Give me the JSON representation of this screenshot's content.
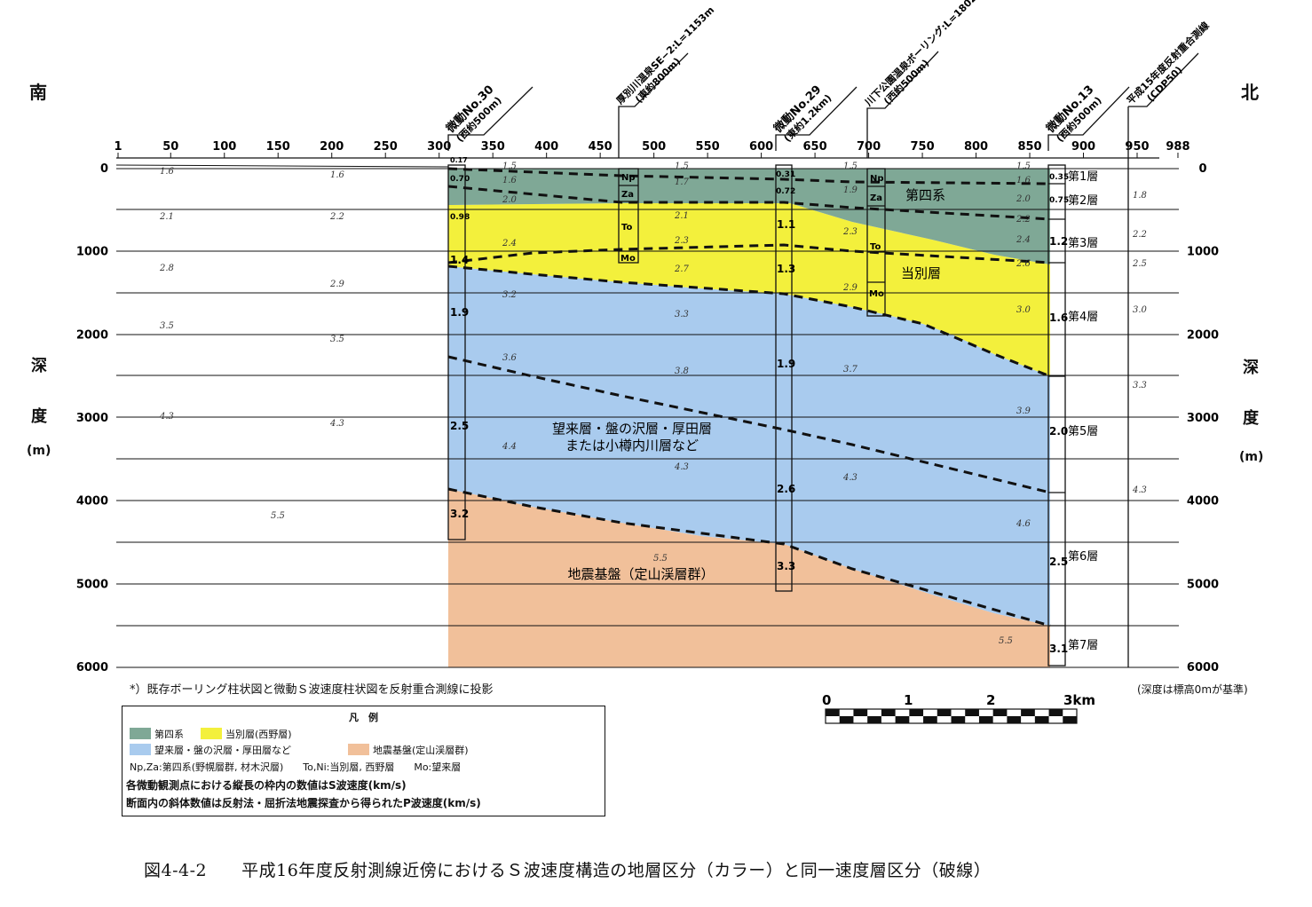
{
  "direction": {
    "south": "南",
    "north": "北"
  },
  "depth_label": {
    "chars": [
      "深",
      "度",
      "(m)"
    ]
  },
  "x_ticks": [
    "1",
    "50",
    "100",
    "150",
    "200",
    "250",
    "300",
    "350",
    "400",
    "450",
    "500",
    "550",
    "600",
    "650",
    "700",
    "750",
    "800",
    "850",
    "900",
    "950",
    "988"
  ],
  "depth_ticks": [
    "0",
    "1000",
    "2000",
    "3000",
    "4000",
    "5000",
    "6000"
  ],
  "colors": {
    "quaternary": "#7fa896",
    "tobetsu": "#f3f03c",
    "bokurai": "#a9cbee",
    "basement": "#f1c09a"
  },
  "boreholes": {
    "b30": {
      "title": "微動No.30",
      "sub": "(西約500m)",
      "vs": [
        "0.17",
        "0.70",
        "0.98",
        "1.4",
        "1.9",
        "2.5",
        "3.2"
      ]
    },
    "atsubetsu": {
      "title": "厚別川温泉SE−2:L=1153m",
      "sub": "(東約800m)",
      "layers": [
        "Np",
        "Za",
        "To",
        "Mo"
      ]
    },
    "b29": {
      "title": "微動No.29",
      "sub": "(東約1.2km)",
      "vs": [
        "0.31",
        "0.72",
        "1.1",
        "1.3",
        "1.9",
        "2.6",
        "3.3"
      ]
    },
    "kawashimo": {
      "title": "川下公園温泉ボーリング:L=1802m",
      "sub": "(西約500m)",
      "layers": [
        "Np",
        "Za",
        "To",
        "Mo"
      ]
    },
    "b13": {
      "title": "微動No.13",
      "sub": "(西約500m)",
      "vs": [
        "0.35",
        "0.75",
        "1.2",
        "1.6",
        "2.0",
        "2.5",
        "3.1"
      ],
      "layers": [
        "第1層",
        "第2層",
        "第3層",
        "第4層",
        "第5層",
        "第6層",
        "第7層"
      ]
    },
    "h15": {
      "title": "平成15年度反射重合測線",
      "sub": "(CDP50)"
    }
  },
  "unit_labels": {
    "quaternary": "第四系",
    "tobetsu": "当別層",
    "bokurai_1": "望来層・盤の沢層・厚田層",
    "bokurai_2": "または小樽内川層など",
    "basement": "地震基盤（定山渓層群）"
  },
  "vp_left": [
    "1.6",
    "1.6",
    "2.1",
    "2.2",
    "2.8",
    "2.9",
    "3.5",
    "3.5",
    "4.3",
    "4.3",
    "5.5"
  ],
  "vp_section": [
    "1.5",
    "1.6",
    "2.0",
    "2.4",
    "3.2",
    "3.6",
    "4.4",
    "1.5",
    "1.7",
    "2.1",
    "2.3",
    "2.7",
    "3.3",
    "3.8",
    "4.3",
    "5.5",
    "1.5",
    "1.9",
    "2.3",
    "2.9",
    "3.7",
    "4.3",
    "1.5",
    "1.6",
    "2.0",
    "2.2",
    "2.4",
    "2.6",
    "3.0",
    "3.9",
    "4.6",
    "5.5"
  ],
  "vp_right": [
    "1.8",
    "2.2",
    "2.5",
    "3.0",
    "3.3",
    "4.3"
  ],
  "footnote": "*）既存ボーリング柱状図と微動Ｓ波速度柱状図を反射重合測線に投影",
  "datum_note": "(深度は標高0mが基準)",
  "scale": {
    "labels": [
      "0",
      "1",
      "2",
      "3km"
    ]
  },
  "legend": {
    "title": "凡　例",
    "quaternary": "第四系",
    "tobetsu": "当別層(西野層)",
    "bokurai": "望来層・盤の沢層・厚田層など",
    "basement": "地震基盤(定山渓層群)",
    "abbr": "Np,Za:第四系(野幌層群, 材木沢層)　　To,Ni:当別層, 西野層　　Mo:望来層",
    "line1": "各微動観測点における縦長の枠内の数値はS波速度(km/s)",
    "line2": "断面内の斜体数値は反射法・屈折法地震探査から得られたP波速度(km/s)"
  },
  "caption": "図4-4-2　　平成16年度反射測線近傍におけるＳ波速度構造の地層区分（カラー）と同一速度層区分（破線）"
}
